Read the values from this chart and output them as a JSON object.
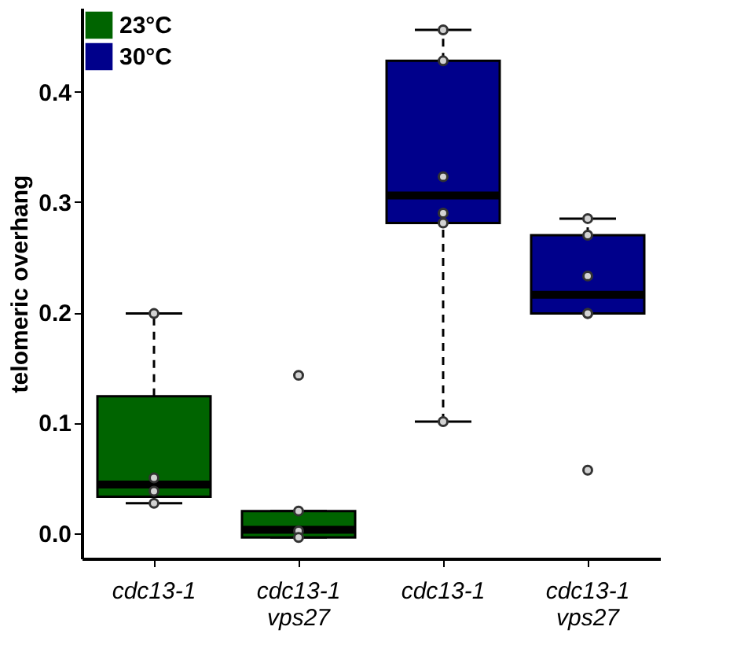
{
  "chart_data": {
    "type": "box",
    "ylabel": "telomeric overhang",
    "categories": [
      "cdc13-1",
      "cdc13-1\nvps27",
      "cdc13-1",
      "cdc13-1\nvps27"
    ],
    "ylim": [
      -0.023,
      0.476
    ],
    "yticks": [
      {
        "value": 0,
        "label": "0.0"
      },
      0.1,
      0.2,
      0.3,
      0.4
    ],
    "legend": "top left",
    "series": [
      {
        "name": "23°C",
        "color": "#006400",
        "boxes": [
          {
            "low": 0.027,
            "q1": 0.033,
            "median": 0.044,
            "q3": 0.124,
            "high": 0.199,
            "outliers": [
              0.199,
              0.05,
              0.038,
              0.027
            ]
          },
          {
            "low": -0.004,
            "q1": -0.004,
            "median": 0.003,
            "q3": 0.02,
            "high": 0.02,
            "outliers": [
              0.143,
              0.02,
              0.002,
              -0.004
            ]
          },
          null,
          null
        ]
      },
      {
        "name": "30°C",
        "color": "#00008b",
        "boxes": [
          null,
          null,
          {
            "low": 0.101,
            "q1": 0.281,
            "median": 0.306,
            "q3": 0.428,
            "high": 0.456,
            "outliers": [
              0.456,
              0.428,
              0.323,
              0.29,
              0.281,
              0.101
            ]
          },
          {
            "low": 0.199,
            "q1": 0.199,
            "median": 0.216,
            "q3": 0.27,
            "high": 0.285,
            "outliers": [
              0.285,
              0.27,
              0.233,
              0.199,
              0.199,
              0.057
            ]
          }
        ]
      }
    ]
  }
}
